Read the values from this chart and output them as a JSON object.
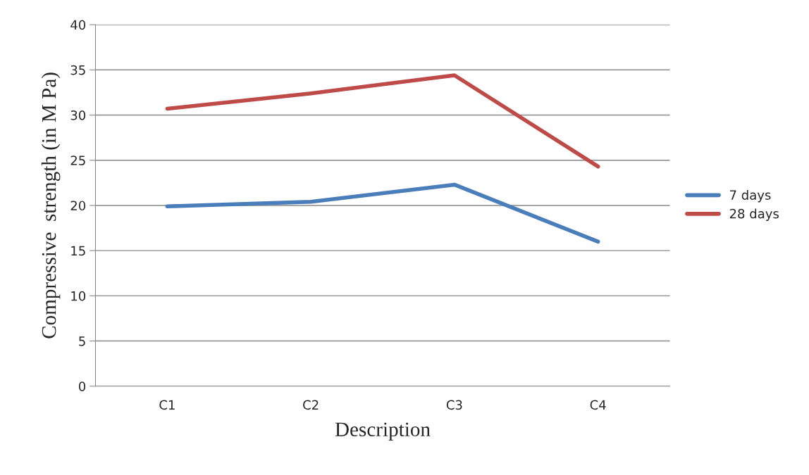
{
  "chart_data": {
    "type": "line",
    "xlabel": "Description",
    "ylabel": "Compressive  strength (in M Pa)",
    "categories": [
      "C1",
      "C2",
      "C3",
      "C4"
    ],
    "series": [
      {
        "name": "7 days",
        "color": "#4a7ebb",
        "values": [
          19.9,
          20.4,
          22.3,
          16.0
        ]
      },
      {
        "name": "28 days",
        "color": "#be4b48",
        "values": [
          30.7,
          32.4,
          34.4,
          24.3
        ]
      }
    ],
    "ylim": [
      0,
      40
    ],
    "yticks": [
      0,
      5,
      10,
      15,
      20,
      25,
      30,
      35,
      40
    ],
    "grid": "y",
    "legend": "right",
    "marker": "none",
    "line_style": "solid"
  }
}
